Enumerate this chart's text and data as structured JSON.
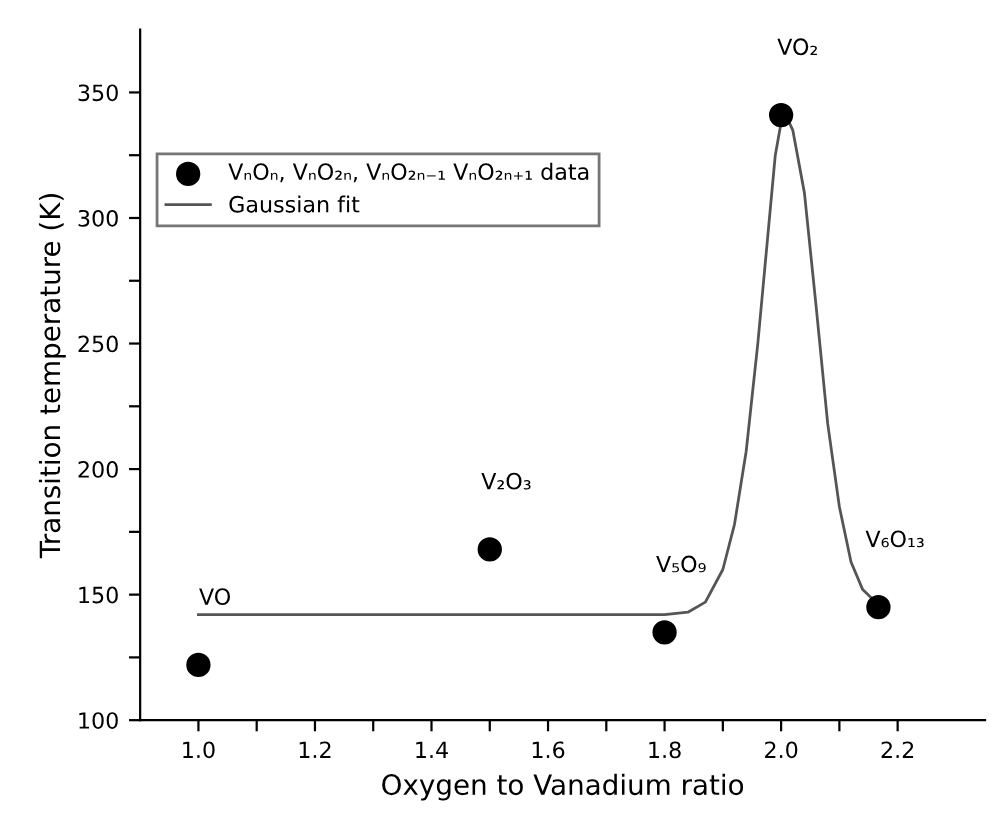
{
  "chart_data": {
    "type": "scatter",
    "xlabel": "Oxygen to Vanadium ratio",
    "ylabel": "Transition temperature (K)",
    "series": [
      {
        "name": "VₙOₙ, VₙO₂ₙ, VₙO₂ₙ₋₁ VₙO₂ₙ₊₁ data",
        "color": "#000000",
        "marker": "circle",
        "x": [
          1.0,
          1.5,
          1.8,
          2.0,
          2.167
        ],
        "values": [
          122,
          168,
          135,
          341,
          145
        ]
      },
      {
        "name": "Gaussian fit",
        "type": "line",
        "color": "#555555",
        "marker": "none",
        "line_style": "solid",
        "x": [
          1.0,
          1.8,
          1.84,
          1.87,
          1.9,
          1.92,
          1.94,
          1.96,
          1.98,
          1.99,
          2.0,
          2.01,
          2.02,
          2.04,
          2.06,
          2.08,
          2.1,
          2.12,
          2.14,
          2.167
        ],
        "values": [
          142,
          142,
          143,
          147,
          160,
          178,
          207,
          250,
          300,
          325,
          338,
          340,
          335,
          310,
          265,
          218,
          185,
          163,
          152,
          146
        ]
      }
    ],
    "annotations": [
      {
        "text": "VO",
        "x": 1.0,
        "y": 122
      },
      {
        "text": "V₂O₃",
        "x": 1.5,
        "y": 168
      },
      {
        "text": "V₅O₉",
        "x": 1.8,
        "y": 135
      },
      {
        "text": "VO₂",
        "x": 2.0,
        "y": 341
      },
      {
        "text": "V₆O₁₃",
        "x": 2.167,
        "y": 145
      }
    ],
    "xlim": [
      0.9,
      2.35
    ],
    "ylim": [
      100,
      375
    ],
    "xticks": [
      {
        "value": 1.0,
        "label": "1.0"
      },
      {
        "value": 1.1,
        "label": null
      },
      {
        "value": 1.2,
        "label": "1.2"
      },
      {
        "value": 1.3,
        "label": null
      },
      {
        "value": 1.4,
        "label": "1.4"
      },
      {
        "value": 1.5,
        "label": null
      },
      {
        "value": 1.6,
        "label": "1.6"
      },
      {
        "value": 1.7,
        "label": null
      },
      {
        "value": 1.8,
        "label": "1.8"
      },
      {
        "value": 1.9,
        "label": null
      },
      {
        "value": 2.0,
        "label": "2.0"
      },
      {
        "value": 2.1,
        "label": null
      },
      {
        "value": 2.2,
        "label": "2.2"
      }
    ],
    "yticks": [
      100,
      {
        "value": 125,
        "label": null
      },
      150,
      {
        "value": 175,
        "label": null
      },
      200,
      {
        "value": 225,
        "label": null
      },
      250,
      {
        "value": 275,
        "label": null
      },
      300,
      {
        "value": 325,
        "label": null
      },
      350
    ],
    "grid": false,
    "legend": "top left"
  }
}
